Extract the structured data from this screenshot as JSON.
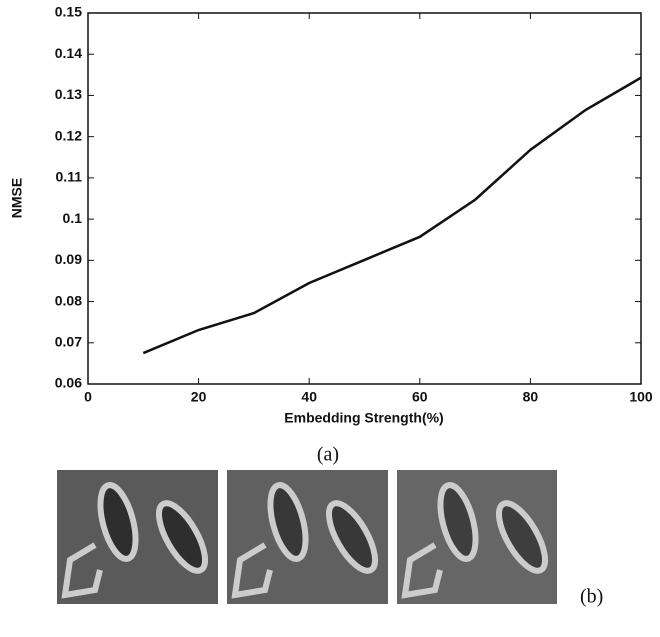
{
  "chart_data": {
    "type": "line",
    "x": [
      10,
      20,
      30,
      40,
      50,
      60,
      70,
      80,
      90,
      100
    ],
    "values": [
      0.0675,
      0.0731,
      0.0772,
      0.0845,
      0.0901,
      0.0957,
      0.1047,
      0.1168,
      0.1265,
      0.1343
    ],
    "color": "#111111",
    "xlabel": "Embedding Strength(%)",
    "ylabel": "NMSE",
    "xlim": [
      0,
      100
    ],
    "xticks": [
      0,
      20,
      40,
      60,
      80,
      100
    ],
    "ylim": [
      0.06,
      0.15
    ],
    "yticks": [
      0.06,
      0.07,
      0.08,
      0.09,
      0.1,
      0.11,
      0.12,
      0.13,
      0.14,
      0.15
    ]
  },
  "captions": {
    "a": "(a)",
    "b": "(b)"
  }
}
